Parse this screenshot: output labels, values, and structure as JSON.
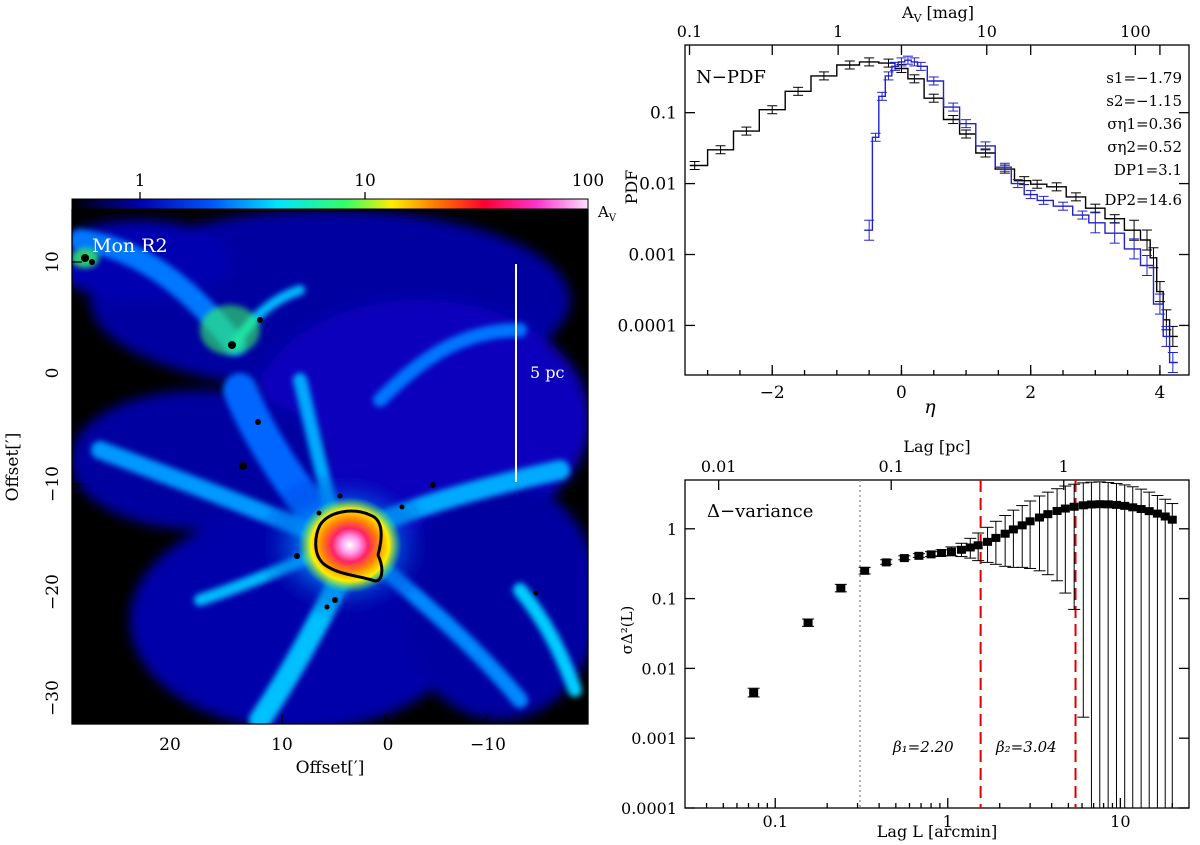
{
  "map": {
    "label": "Mon R2",
    "scalebar_label": "5 pc",
    "colorbar_unit": "A",
    "colorbar_unit_sub": "V",
    "colorbar_ticks": [
      "1",
      "10",
      "100"
    ],
    "x_ticks": [
      "20",
      "10",
      "0",
      "−10"
    ],
    "y_ticks": [
      "10",
      "0",
      "−10",
      "−20",
      "−30"
    ],
    "xlabel": "Offset[′]",
    "ylabel": "Offset[′]",
    "colors": {
      "background": "#000000",
      "contour": "#000000",
      "scalebar": "#ffffff",
      "label": "#ffffff"
    }
  },
  "chart_data": [
    {
      "type": "line",
      "title": "N−PDF",
      "xlabel": "η",
      "ylabel": "PDF",
      "top_axis_label": "A",
      "top_axis_label_sub": "V",
      "top_axis_unit": "[mag]",
      "top_ticks": [
        "0.1",
        "1",
        "10",
        "100"
      ],
      "top_tick_eta": [
        -3.28,
        -0.98,
        1.32,
        3.62
      ],
      "x_ticks": [
        "−2",
        "0",
        "2",
        "4"
      ],
      "x_tick_values": [
        -2,
        0,
        2,
        4
      ],
      "y_ticks": [
        "0.1",
        "0.01",
        "0.001",
        "0.0001"
      ],
      "y_tick_values": [
        0.1,
        0.01,
        0.001,
        0.0001
      ],
      "xlim": [
        -3.35,
        4.45
      ],
      "ylim": [
        2e-05,
        0.9
      ],
      "annotations": [
        "s1=−1.79",
        "s2=−1.15",
        "ση1=0.36",
        "ση2=0.52",
        "DP1=3.1",
        "DP2=14.6"
      ],
      "series": [
        {
          "name": "black",
          "color": "#000000",
          "x": [
            -3.2,
            -2.8,
            -2.4,
            -2.0,
            -1.6,
            -1.2,
            -0.8,
            -0.5,
            -0.2,
            0.0,
            0.2,
            0.5,
            0.8,
            1.0,
            1.3,
            1.6,
            1.9,
            2.1,
            2.4,
            2.7,
            3.0,
            3.3,
            3.6,
            3.8,
            3.9,
            4.0,
            4.1,
            4.2
          ],
          "y": [
            0.018,
            0.03,
            0.055,
            0.11,
            0.2,
            0.33,
            0.47,
            0.52,
            0.5,
            0.42,
            0.3,
            0.16,
            0.08,
            0.05,
            0.027,
            0.016,
            0.011,
            0.0098,
            0.009,
            0.0065,
            0.0045,
            0.0032,
            0.0022,
            0.0016,
            0.0009,
            0.0003,
            0.00012,
            7e-05
          ]
        },
        {
          "name": "blue",
          "color": "#2222cc",
          "x": [
            -0.5,
            -0.4,
            -0.3,
            -0.2,
            -0.1,
            0.0,
            0.1,
            0.2,
            0.3,
            0.5,
            0.8,
            1.0,
            1.3,
            1.6,
            1.8,
            2.0,
            2.2,
            2.5,
            2.8,
            3.0,
            3.3,
            3.6,
            3.8,
            4.0,
            4.1,
            4.2
          ],
          "y": [
            0.0022,
            0.045,
            0.17,
            0.33,
            0.45,
            0.52,
            0.55,
            0.52,
            0.45,
            0.28,
            0.12,
            0.07,
            0.034,
            0.017,
            0.01,
            0.007,
            0.0058,
            0.0048,
            0.0036,
            0.0028,
            0.002,
            0.0012,
            0.0007,
            0.0002,
            7e-05,
            3e-05
          ]
        }
      ]
    },
    {
      "type": "scatter",
      "title": "Δ−variance",
      "xlabel": "Lag L [arcmin]",
      "ylabel": "σΔ²(L)",
      "top_axis_label": "Lag [pc]",
      "top_ticks": [
        "0.01",
        "0.1",
        "1"
      ],
      "top_tick_arcmin": [
        0.047,
        0.47,
        4.7
      ],
      "x_ticks": [
        "0.1",
        "1",
        "10"
      ],
      "x_tick_values": [
        0.1,
        1,
        10
      ],
      "y_ticks": [
        "1",
        "0.1",
        "0.01",
        "0.001",
        "0.0001"
      ],
      "y_tick_values": [
        1,
        0.1,
        0.01,
        0.001,
        0.0001
      ],
      "xlim": [
        0.03,
        25
      ],
      "ylim": [
        0.0001,
        5
      ],
      "beta1_label": "β₁=2.20",
      "beta2_label": "β₂=3.04",
      "vlines": [
        {
          "x": 0.31,
          "style": "dotted",
          "color": "#888888"
        },
        {
          "x": 1.55,
          "style": "dashed",
          "color": "#dd0000"
        },
        {
          "x": 5.5,
          "style": "dashed",
          "color": "#dd0000"
        }
      ],
      "x": [
        0.075,
        0.155,
        0.24,
        0.33,
        0.44,
        0.56,
        0.68,
        0.8,
        0.92,
        1.05,
        1.2,
        1.35,
        1.5,
        1.7,
        1.9,
        2.15,
        2.4,
        2.7,
        3.0,
        3.4,
        3.8,
        4.3,
        4.8,
        5.4,
        6.1,
        6.8,
        7.6,
        8.5,
        9.5,
        10.6,
        11.8,
        13.2,
        14.7,
        16.4,
        18.2,
        20.0
      ],
      "y": [
        0.0045,
        0.045,
        0.14,
        0.25,
        0.33,
        0.38,
        0.41,
        0.43,
        0.45,
        0.47,
        0.5,
        0.54,
        0.58,
        0.65,
        0.74,
        0.85,
        0.98,
        1.12,
        1.28,
        1.45,
        1.62,
        1.8,
        1.95,
        2.07,
        2.17,
        2.23,
        2.25,
        2.24,
        2.2,
        2.13,
        2.03,
        1.92,
        1.79,
        1.65,
        1.5,
        1.35
      ],
      "err_low": [
        0.0039,
        0.04,
        0.125,
        0.225,
        0.31,
        0.36,
        0.39,
        0.4,
        0.41,
        0.41,
        0.4,
        0.38,
        0.35,
        0.33,
        0.31,
        0.29,
        0.28,
        0.28,
        0.27,
        0.25,
        0.22,
        0.18,
        0.12,
        0.07,
        0.002,
        0.0001,
        0.0001,
        0.0001,
        0.0001,
        0.0001,
        0.0001,
        0.0001,
        0.0001,
        0.0001,
        0.0001,
        0.0001
      ],
      "err_high": [
        0.0052,
        0.051,
        0.16,
        0.28,
        0.36,
        0.41,
        0.44,
        0.47,
        0.5,
        0.55,
        0.62,
        0.73,
        0.87,
        1.05,
        1.28,
        1.55,
        1.85,
        2.15,
        2.5,
        2.95,
        3.35,
        3.75,
        4.1,
        4.35,
        4.55,
        4.65,
        4.7,
        4.6,
        4.45,
        4.25,
        4.0,
        3.7,
        3.35,
        3.0,
        2.65,
        2.3
      ]
    }
  ]
}
